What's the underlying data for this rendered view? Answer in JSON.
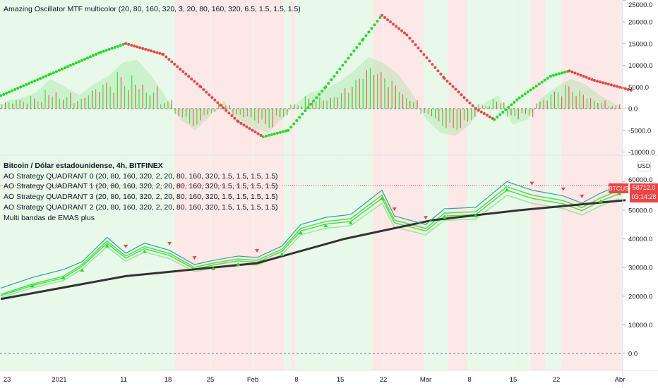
{
  "oscillator_title": "Amazing Oscillator MTF multicolor (20, 80, 160, 320, 3, 20, 80, 160, 320, 6.5, 1.5, 1.5, 1.5)",
  "main_legend": {
    "symbol_title": "Bitcoin / Dólar estadounidense, 4h, BITFINEX",
    "lines": [
      "AO Strategy QUADRANT 0 (20, 80, 160, 320, 2, 20, 80, 160, 320, 1.5, 1.5, 1.5, 1.5)",
      "AO Strategy QUADRANT 1 (20, 80, 160, 320, 2, 20, 80, 160, 320, 1.5, 1.5, 1.5, 1.5)",
      "AO Strategy QUADRANT 3 (20, 80, 160, 320, 2, 20, 80, 160, 320, 1.5, 1.5, 1.5, 1.5)",
      "AO Strategy QUADRANT 2 (20, 80, 160, 320, 2, 20, 80, 160, 320, 1.5, 1.5, 1.5, 1.5)",
      "Multi bandas de EMAS plus"
    ]
  },
  "currency_button": "USD",
  "symbol_badge": "BTCUSD",
  "last_price": "58712.0",
  "countdown": "03:14:28",
  "colors": {
    "bull": "#22dd22",
    "bear": "#ef4444",
    "ema_slow": "#333333",
    "bull_bg": "#e8f9ea",
    "bear_bg": "#fde8e8"
  },
  "chart_data": [
    {
      "type": "line",
      "title": "Amazing Oscillator MTF multicolor",
      "yticks": [
        "25000.0",
        "20000.0",
        "15000.0",
        "10000.0",
        "5000.0",
        "0.0",
        "-5000.0",
        "-10000.0"
      ],
      "ylim": [
        -10000,
        25000
      ],
      "oscillator_line": [
        [
          "2020-12-22",
          3000
        ],
        [
          "2020-12-30",
          8000
        ],
        [
          "2021-01-07",
          13000
        ],
        [
          "2021-01-11",
          15000
        ],
        [
          "2021-01-17",
          12500
        ],
        [
          "2021-01-23",
          5000
        ],
        [
          "2021-01-29",
          -3000
        ],
        [
          "2021-02-02",
          -6500
        ],
        [
          "2021-02-06",
          -5000
        ],
        [
          "2021-02-12",
          5000
        ],
        [
          "2021-02-18",
          16000
        ],
        [
          "2021-02-21",
          21500
        ],
        [
          "2021-02-25",
          17000
        ],
        [
          "2021-03-03",
          7000
        ],
        [
          "2021-03-08",
          0
        ],
        [
          "2021-03-11",
          -2500
        ],
        [
          "2021-03-15",
          2500
        ],
        [
          "2021-03-20",
          7500
        ],
        [
          "2021-03-23",
          8700
        ],
        [
          "2021-03-27",
          6500
        ],
        [
          "2021-04-02",
          4200
        ]
      ],
      "histogram": [
        1500,
        2000,
        3000,
        5500,
        4000,
        2500,
        4500,
        6000,
        8500,
        9000,
        6000,
        2000,
        -2000,
        -4000,
        -1500,
        1500,
        -2500,
        -3500,
        -4500,
        -2000,
        1000,
        3000,
        3500,
        5000,
        7000,
        9500,
        8500,
        6500,
        3000,
        -2000,
        -4500,
        -5000,
        -3000,
        1000,
        2500,
        -3000,
        -2000,
        2000,
        4000,
        5500,
        4500,
        2500,
        1000
      ],
      "hline": 0
    },
    {
      "type": "line",
      "title": "Bitcoin / Dólar estadounidense, 4h, BITFINEX",
      "yticks": [
        "60000.0",
        "50000.0",
        "40000.0",
        "30000.0",
        "20000.0",
        "10000.0",
        "0.0"
      ],
      "ylim": [
        0,
        62000
      ],
      "xticks": [
        "23",
        "2021",
        "11",
        "18",
        "25",
        "Feb",
        "8",
        "15",
        "22",
        "Mar",
        "8",
        "15",
        "22",
        "Abr"
      ],
      "price": [
        [
          "2020-12-22",
          22800
        ],
        [
          "2020-12-27",
          26500
        ],
        [
          "2021-01-01",
          29300
        ],
        [
          "2021-01-04",
          32000
        ],
        [
          "2021-01-08",
          40500
        ],
        [
          "2021-01-11",
          35000
        ],
        [
          "2021-01-14",
          38500
        ],
        [
          "2021-01-18",
          36000
        ],
        [
          "2021-01-22",
          31000
        ],
        [
          "2021-01-25",
          32500
        ],
        [
          "2021-01-29",
          34000
        ],
        [
          "2021-02-01",
          33500
        ],
        [
          "2021-02-05",
          37500
        ],
        [
          "2021-02-08",
          45000
        ],
        [
          "2021-02-12",
          47500
        ],
        [
          "2021-02-16",
          48500
        ],
        [
          "2021-02-21",
          57000
        ],
        [
          "2021-02-23",
          48000
        ],
        [
          "2021-02-28",
          45000
        ],
        [
          "2021-03-03",
          50500
        ],
        [
          "2021-03-08",
          51000
        ],
        [
          "2021-03-13",
          60000
        ],
        [
          "2021-03-17",
          57000
        ],
        [
          "2021-03-22",
          55000
        ],
        [
          "2021-03-25",
          52500
        ],
        [
          "2021-03-28",
          56000
        ],
        [
          "2021-03-31",
          58712
        ]
      ],
      "ema_slow": [
        [
          "2020-12-22",
          19000
        ],
        [
          "2021-01-11",
          27000
        ],
        [
          "2021-02-01",
          31500
        ],
        [
          "2021-02-15",
          40000
        ],
        [
          "2021-03-01",
          46500
        ],
        [
          "2021-03-15",
          50000
        ],
        [
          "2021-04-01",
          53500
        ]
      ],
      "hline": 0
    }
  ]
}
